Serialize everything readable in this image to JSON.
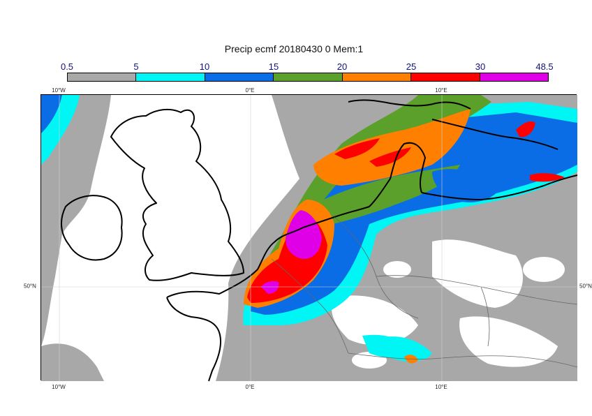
{
  "title": "Precip ecmf 20180430 0 Mem:1",
  "colorbar": {
    "labels": [
      "0.5",
      "5",
      "10",
      "15",
      "20",
      "25",
      "30",
      "48.5"
    ],
    "colors": [
      "#a8a8a8",
      "#00f5f5",
      "#0a6de6",
      "#5aa02a",
      "#ff8000",
      "#ff0000",
      "#e000e8"
    ]
  },
  "axes": {
    "lon_top": [
      "10°W",
      "0°E",
      "10°E"
    ],
    "lon_bottom": [
      "10°W",
      "0°E",
      "10°E"
    ],
    "lat_left": [
      "50°N"
    ],
    "lat_right": [
      "50°N"
    ]
  }
}
